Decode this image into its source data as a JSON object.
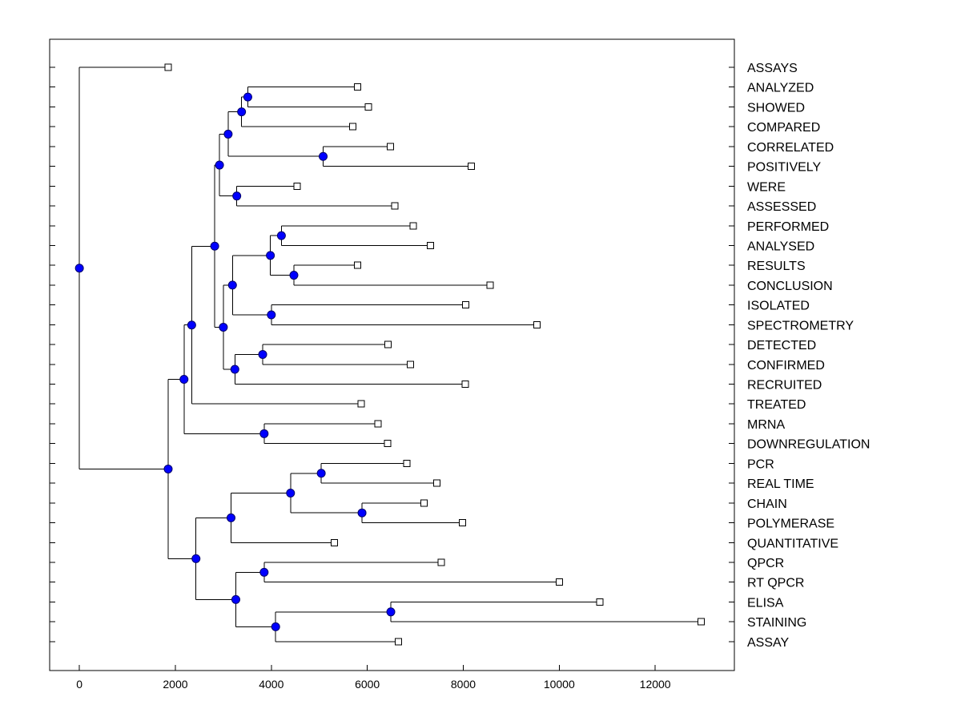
{
  "chart_data": {
    "type": "dendrogram",
    "title": "",
    "xlabel": "",
    "ylabel": "",
    "xlim": [
      -620,
      13650
    ],
    "x_ticks": [
      0,
      2000,
      4000,
      6000,
      8000,
      10000,
      12000
    ],
    "leaves": [
      {
        "label": "ASSAYS",
        "x": 1850
      },
      {
        "label": "ANALYZED",
        "x": 5800
      },
      {
        "label": "SHOWED",
        "x": 6020
      },
      {
        "label": "COMPARED",
        "x": 5700
      },
      {
        "label": "CORRELATED",
        "x": 6480
      },
      {
        "label": "POSITIVELY",
        "x": 8170
      },
      {
        "label": "WERE",
        "x": 4540
      },
      {
        "label": "ASSESSED",
        "x": 6570
      },
      {
        "label": "PERFORMED",
        "x": 6960
      },
      {
        "label": "ANALYSED",
        "x": 7320
      },
      {
        "label": "RESULTS",
        "x": 5800
      },
      {
        "label": "CONCLUSION",
        "x": 8560
      },
      {
        "label": "ISOLATED",
        "x": 8050
      },
      {
        "label": "SPECTROMETRY",
        "x": 9540
      },
      {
        "label": "DETECTED",
        "x": 6430
      },
      {
        "label": "CONFIRMED",
        "x": 6900
      },
      {
        "label": "RECRUITED",
        "x": 8040
      },
      {
        "label": "TREATED",
        "x": 5870
      },
      {
        "label": "MRNA",
        "x": 6220
      },
      {
        "label": "DOWNREGULATION",
        "x": 6420
      },
      {
        "label": "PCR",
        "x": 6820
      },
      {
        "label": "REAL TIME",
        "x": 7450
      },
      {
        "label": "CHAIN",
        "x": 7180
      },
      {
        "label": "POLYMERASE",
        "x": 7980
      },
      {
        "label": "QUANTITATIVE",
        "x": 5310
      },
      {
        "label": "QPCR",
        "x": 7540
      },
      {
        "label": "RT QPCR",
        "x": 10000
      },
      {
        "label": "ELISA",
        "x": 10850
      },
      {
        "label": "STAINING",
        "x": 12960
      },
      {
        "label": "ASSAY",
        "x": 6650
      }
    ],
    "nodes": [
      {
        "id": "n1",
        "x": 3510,
        "children": [
          1,
          2
        ]
      },
      {
        "id": "n2",
        "x": 3380,
        "children": [
          "n1",
          3
        ]
      },
      {
        "id": "n3",
        "x": 5080,
        "children": [
          4,
          5
        ]
      },
      {
        "id": "n4",
        "x": 3100,
        "children": [
          "n2",
          "n3"
        ]
      },
      {
        "id": "n5",
        "x": 3280,
        "children": [
          6,
          7
        ]
      },
      {
        "id": "n6",
        "x": 2920,
        "children": [
          "n4",
          "n5"
        ]
      },
      {
        "id": "n7",
        "x": 4210,
        "children": [
          8,
          9
        ]
      },
      {
        "id": "n8",
        "x": 4470,
        "children": [
          10,
          11
        ]
      },
      {
        "id": "n9",
        "x": 3980,
        "children": [
          "n7",
          "n8"
        ]
      },
      {
        "id": "n10",
        "x": 4000,
        "children": [
          12,
          13
        ]
      },
      {
        "id": "n11",
        "x": 3190,
        "children": [
          "n9",
          "n10"
        ]
      },
      {
        "id": "n12",
        "x": 3820,
        "children": [
          14,
          15
        ]
      },
      {
        "id": "n13",
        "x": 3240,
        "children": [
          "n12",
          16
        ]
      },
      {
        "id": "n14",
        "x": 3000,
        "children": [
          "n11",
          "n13"
        ]
      },
      {
        "id": "n15",
        "x": 2820,
        "children": [
          "n6",
          "n14"
        ]
      },
      {
        "id": "n16",
        "x": 2340,
        "children": [
          "n15",
          17
        ]
      },
      {
        "id": "n17",
        "x": 3850,
        "children": [
          18,
          19
        ]
      },
      {
        "id": "n18",
        "x": 2180,
        "children": [
          "n16",
          "n17"
        ]
      },
      {
        "id": "n19",
        "x": 5040,
        "children": [
          20,
          21
        ]
      },
      {
        "id": "n20",
        "x": 5890,
        "children": [
          22,
          23
        ]
      },
      {
        "id": "n21",
        "x": 4400,
        "children": [
          "n19",
          "n20"
        ]
      },
      {
        "id": "n22",
        "x": 3160,
        "children": [
          "n21",
          24
        ]
      },
      {
        "id": "n23",
        "x": 3850,
        "children": [
          25,
          26
        ]
      },
      {
        "id": "n24",
        "x": 6490,
        "children": [
          27,
          28
        ]
      },
      {
        "id": "n25",
        "x": 4090,
        "children": [
          "n24",
          29
        ]
      },
      {
        "id": "n26",
        "x": 3260,
        "children": [
          "n23",
          "n25"
        ]
      },
      {
        "id": "n27",
        "x": 2430,
        "children": [
          "n22",
          "n26"
        ]
      },
      {
        "id": "n28",
        "x": 1850,
        "children": [
          "n18",
          "n27"
        ]
      },
      {
        "id": "n29",
        "x": 0,
        "children": [
          0,
          "n28"
        ]
      }
    ]
  }
}
